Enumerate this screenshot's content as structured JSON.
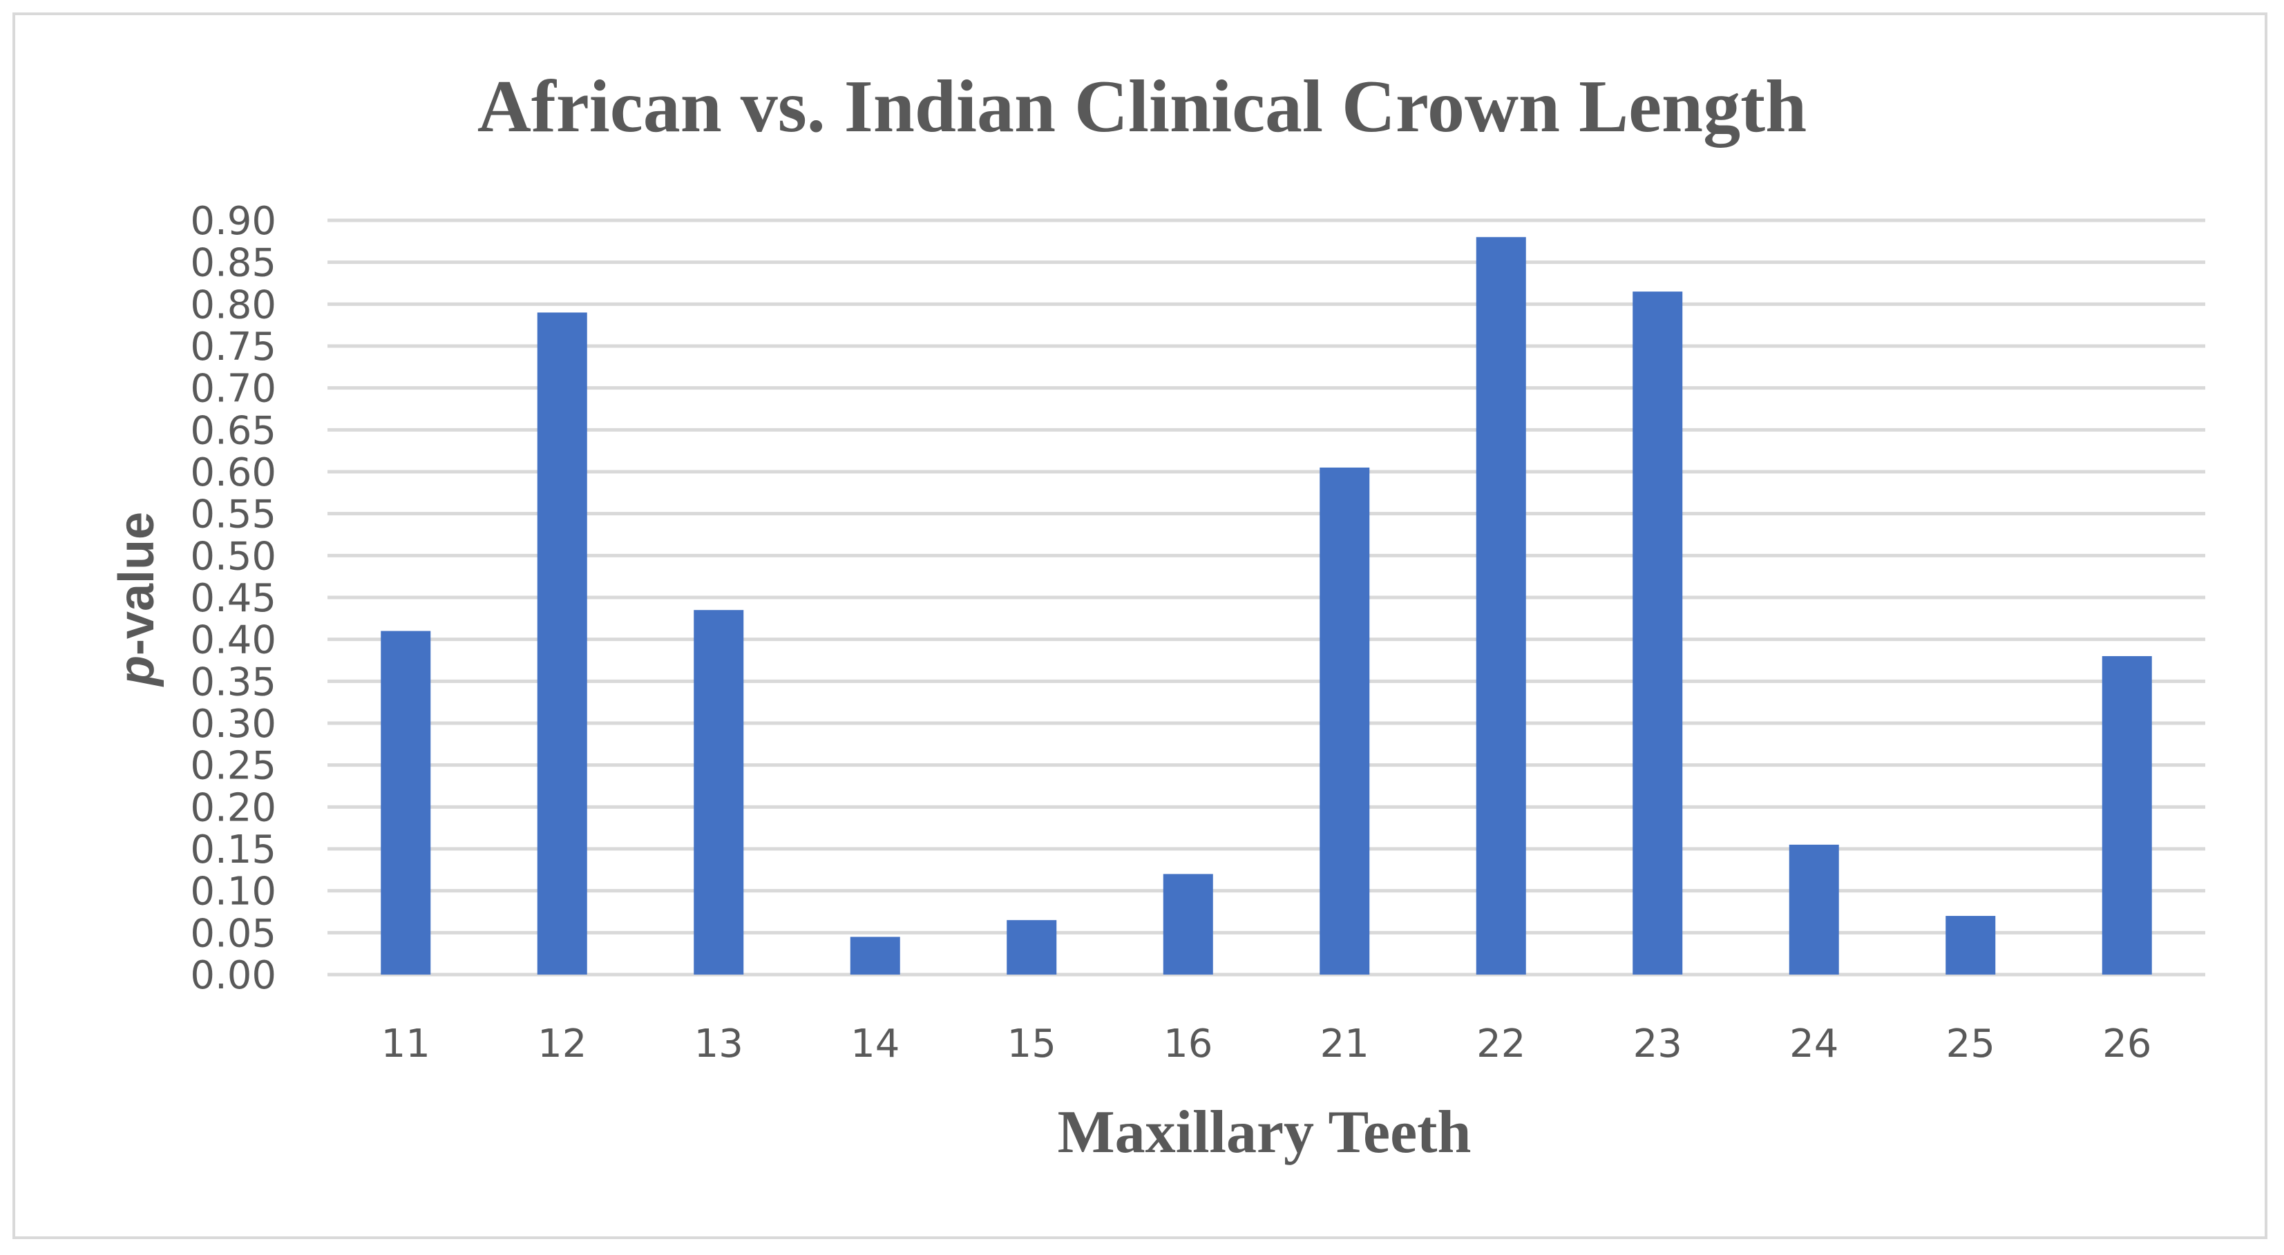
{
  "chart_data": {
    "type": "bar",
    "title": "African vs. Indian Clinical Crown Length",
    "xlabel": "Maxillary Teeth",
    "ylabel_italic": "p",
    "ylabel_rest": "-value",
    "categories": [
      "11",
      "12",
      "13",
      "14",
      "15",
      "16",
      "21",
      "22",
      "23",
      "24",
      "25",
      "26"
    ],
    "values": [
      0.41,
      0.79,
      0.435,
      0.045,
      0.065,
      0.12,
      0.605,
      0.88,
      0.815,
      0.155,
      0.07,
      0.38
    ],
    "ylim": [
      0,
      0.9
    ],
    "yticks": [
      "0.00",
      "0.05",
      "0.10",
      "0.15",
      "0.20",
      "0.25",
      "0.30",
      "0.35",
      "0.40",
      "0.45",
      "0.50",
      "0.55",
      "0.60",
      "0.65",
      "0.70",
      "0.75",
      "0.80",
      "0.85",
      "0.90"
    ],
    "bar_color": "#4472c4",
    "grid": true,
    "legend": "none"
  }
}
